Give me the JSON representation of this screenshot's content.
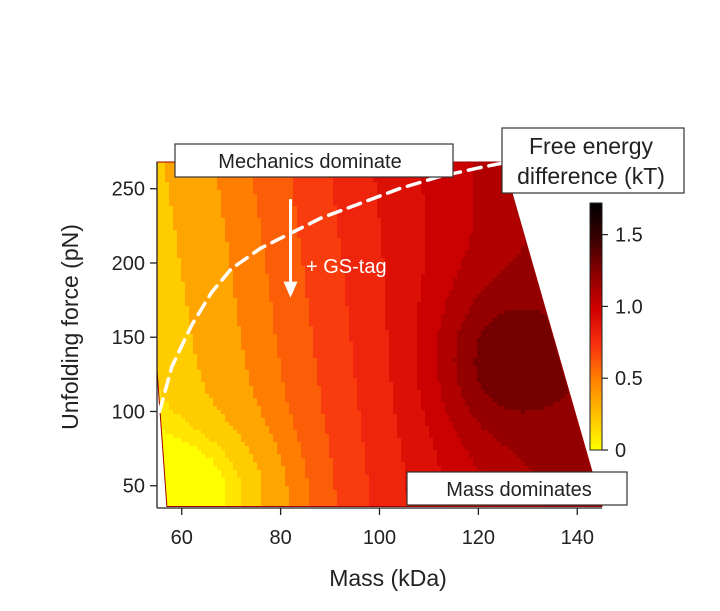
{
  "chart_data": {
    "type": "heatmap",
    "title": "",
    "xlabel": "Mass (kDa)",
    "ylabel": "Unfolding force (pN)",
    "xlim": [
      55,
      145
    ],
    "ylim": [
      35,
      268
    ],
    "x_ticks": [
      60,
      80,
      100,
      120,
      140
    ],
    "y_ticks": [
      50,
      100,
      150,
      200,
      250
    ],
    "colorbar": {
      "title_line1": "Free energy",
      "title_line2": "difference (kT)",
      "range": [
        0,
        1.72
      ],
      "ticks": [
        0,
        0.5,
        1.0,
        1.5
      ],
      "tick_labels": [
        "0",
        "0.5",
        "1.0",
        "1.5"
      ],
      "colormap": [
        "#ffff00",
        "#ffc000",
        "#ff8000",
        "#f83010",
        "#d00000",
        "#8c0000",
        "#380000",
        "#000000"
      ]
    },
    "contour_levels": [
      0.1,
      0.2,
      0.35,
      0.5,
      0.6,
      0.7,
      0.8,
      0.9,
      1.0,
      1.1,
      1.2,
      1.3,
      1.4,
      1.5
    ],
    "grid_x": [
      55,
      60,
      65,
      70,
      75,
      80,
      85,
      90,
      95,
      100,
      105,
      110,
      115,
      120,
      125,
      130,
      135,
      140,
      145
    ],
    "grid_y": [
      35,
      50,
      65,
      80,
      95,
      110,
      125,
      140,
      155,
      170,
      185,
      200,
      215,
      230,
      245,
      268
    ],
    "valid_region": {
      "x_mass": [
        57,
        145,
        125,
        55,
        55
      ],
      "y_force": [
        36,
        36,
        268,
        268,
        128
      ]
    },
    "dashed_boundary": [
      {
        "mass": 55.5,
        "force": 100
      },
      {
        "mass": 58,
        "force": 130
      },
      {
        "mass": 62,
        "force": 158
      },
      {
        "mass": 66,
        "force": 180
      },
      {
        "mass": 70,
        "force": 196
      },
      {
        "mass": 76,
        "force": 210
      },
      {
        "mass": 82,
        "force": 220
      },
      {
        "mass": 88,
        "force": 230
      },
      {
        "mass": 96,
        "force": 240
      },
      {
        "mass": 104,
        "force": 250
      },
      {
        "mass": 112,
        "force": 258
      },
      {
        "mass": 120,
        "force": 264
      },
      {
        "mass": 126,
        "force": 268
      }
    ],
    "annotations": {
      "top_box": "Mechanics dominate",
      "bottom_box": "Mass dominates",
      "arrow_label": "+ GS-tag",
      "arrow": {
        "mass": 82,
        "force_from": 243,
        "force_to": 178
      }
    }
  }
}
